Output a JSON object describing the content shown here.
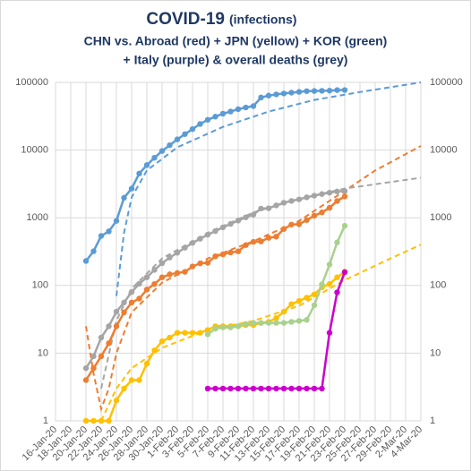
{
  "chart_data": {
    "type": "line",
    "title": "COVID-19",
    "title_note": "(infections)",
    "subtitle": [
      "CHN vs. Abroad (red) + JPN (yellow) + KOR (green)",
      "+ Italy (purple) & overall deaths (grey)"
    ],
    "log_y": true,
    "grid": true,
    "xlim": [
      "2020-01-16",
      "2020-03-04"
    ],
    "xticks": [
      {
        "value": "2020-01-16",
        "label": "16-Jan-20"
      },
      {
        "value": "2020-01-18",
        "label": "18-Jan-20"
      },
      {
        "value": "2020-01-20",
        "label": "20-Jan-20"
      },
      {
        "value": "2020-01-22",
        "label": "22-Jan-20"
      },
      {
        "value": "2020-01-24",
        "label": "24-Jan-20"
      },
      {
        "value": "2020-01-26",
        "label": "26-Jan-20"
      },
      {
        "value": "2020-01-28",
        "label": "28-Jan-20"
      },
      {
        "value": "2020-01-30",
        "label": "30-Jan-20"
      },
      {
        "value": "2020-02-01",
        "label": "1-Feb-20"
      },
      {
        "value": "2020-02-03",
        "label": "3-Feb-20"
      },
      {
        "value": "2020-02-05",
        "label": "5-Feb-20"
      },
      {
        "value": "2020-02-07",
        "label": "7-Feb-20"
      },
      {
        "value": "2020-02-09",
        "label": "9-Feb-20"
      },
      {
        "value": "2020-02-11",
        "label": "11-Feb-20"
      },
      {
        "value": "2020-02-13",
        "label": "13-Feb-20"
      },
      {
        "value": "2020-02-15",
        "label": "15-Feb-20"
      },
      {
        "value": "2020-02-17",
        "label": "17-Feb-20"
      },
      {
        "value": "2020-02-19",
        "label": "19-Feb-20"
      },
      {
        "value": "2020-02-21",
        "label": "21-Feb-20"
      },
      {
        "value": "2020-02-23",
        "label": "23-Feb-20"
      },
      {
        "value": "2020-02-25",
        "label": "25-Feb-20"
      },
      {
        "value": "2020-02-27",
        "label": "27-Feb-20"
      },
      {
        "value": "2020-02-29",
        "label": "29-Feb-20"
      },
      {
        "value": "2020-03-02",
        "label": "2-Mar-20"
      },
      {
        "value": "2020-03-04",
        "label": "4-Mar-20"
      }
    ],
    "ylim": [
      1,
      100000
    ],
    "yticks": [
      1,
      10,
      100,
      1000,
      10000,
      100000
    ],
    "y2lim": [
      1,
      100000
    ],
    "y2ticks": [
      1,
      10,
      100,
      1000,
      10000,
      100000
    ],
    "x": [
      "2020-01-20",
      "2020-01-21",
      "2020-01-22",
      "2020-01-23",
      "2020-01-24",
      "2020-01-25",
      "2020-01-26",
      "2020-01-27",
      "2020-01-28",
      "2020-01-29",
      "2020-01-30",
      "2020-01-31",
      "2020-02-01",
      "2020-02-02",
      "2020-02-03",
      "2020-02-04",
      "2020-02-05",
      "2020-02-06",
      "2020-02-07",
      "2020-02-08",
      "2020-02-09",
      "2020-02-10",
      "2020-02-11",
      "2020-02-12",
      "2020-02-13",
      "2020-02-14",
      "2020-02-15",
      "2020-02-16",
      "2020-02-17",
      "2020-02-18",
      "2020-02-19",
      "2020-02-20",
      "2020-02-21",
      "2020-02-22",
      "2020-02-23"
    ],
    "series": [
      {
        "color": "#5b9bd5",
        "values": [
          230,
          320,
          540,
          630,
          900,
          1975,
          2700,
          4500,
          6000,
          7700,
          9700,
          11800,
          14400,
          17200,
          20400,
          24300,
          28000,
          31200,
          34500,
          37100,
          40200,
          42600,
          44600,
          59800,
          63800,
          66500,
          68500,
          70500,
          72400,
          74200,
          74600,
          75100,
          75500,
          76900,
          77100
        ]
      },
      {
        "color": "#a5a5a5",
        "values": [
          6,
          9,
          17,
          25,
          41,
          56,
          80,
          106,
          132,
          170,
          213,
          259,
          304,
          361,
          425,
          490,
          563,
          636,
          722,
          811,
          908,
          1016,
          1113,
          1368,
          1381,
          1524,
          1666,
          1772,
          1870,
          2006,
          2121,
          2239,
          2348,
          2445,
          2480
        ]
      },
      {
        "color": "#ed7d31",
        "values": [
          4,
          6,
          9,
          14,
          25,
          40,
          56,
          64,
          87,
          105,
          132,
          146,
          153,
          159,
          191,
          212,
          216,
          270,
          288,
          307,
          319,
          395,
          441,
          447,
          505,
          526,
          683,
          794,
          804,
          924,
          1073,
          1200,
          1402,
          1769,
          2069
        ]
      },
      {
        "color": "#ffc000",
        "values": [
          1,
          1,
          1,
          1,
          2,
          3,
          4,
          4,
          7,
          11,
          15,
          17,
          20,
          20,
          20,
          20,
          22,
          25,
          25,
          25,
          25,
          26,
          26,
          28,
          29,
          33,
          41,
          53,
          59,
          66,
          74,
          94,
          105,
          132,
          160
        ]
      },
      {
        "color": "#a9d18e",
        "values": [
          null,
          null,
          null,
          null,
          null,
          null,
          null,
          null,
          null,
          null,
          null,
          null,
          null,
          null,
          null,
          null,
          19,
          23,
          24,
          24,
          25,
          27,
          28,
          28,
          28,
          28,
          28,
          29,
          30,
          31,
          51,
          104,
          204,
          433,
          763
        ]
      },
      {
        "color": "#cc00cc",
        "values": [
          null,
          null,
          null,
          null,
          null,
          null,
          null,
          null,
          null,
          null,
          null,
          null,
          null,
          null,
          null,
          null,
          3,
          3,
          3,
          3,
          3,
          3,
          3,
          3,
          3,
          3,
          3,
          3,
          3,
          3,
          3,
          3,
          20,
          79,
          157
        ]
      }
    ],
    "trendlines": [
      {
        "color": "#5b9bd5",
        "x": [
          "2020-01-24",
          "2020-01-25",
          "2020-01-26",
          "2020-01-28",
          "2020-02-01",
          "2020-02-07",
          "2020-02-13",
          "2020-02-19",
          "2020-02-25",
          "2020-03-04"
        ],
        "values": [
          70,
          600,
          2000,
          5000,
          11000,
          22000,
          37000,
          55000,
          72000,
          100000
        ]
      },
      {
        "color": "#ed7d31",
        "x": [
          "2020-01-20",
          "2020-01-21",
          "2020-01-22",
          "2020-01-23",
          "2020-01-24",
          "2020-01-26",
          "2020-01-30",
          "2020-02-05",
          "2020-02-11",
          "2020-02-17",
          "2020-02-23",
          "2020-02-27",
          "2020-03-04"
        ],
        "values": [
          25,
          5,
          1.5,
          3,
          10,
          40,
          110,
          250,
          450,
          900,
          2500,
          5000,
          11500
        ]
      },
      {
        "color": "#a5a5a5",
        "x": [
          "2020-01-22",
          "2020-01-24",
          "2020-01-26",
          "2020-01-30",
          "2020-02-05",
          "2020-02-11",
          "2020-02-17",
          "2020-02-23",
          "2020-03-04"
        ],
        "values": [
          3,
          30,
          90,
          250,
          600,
          1200,
          1900,
          2700,
          3900
        ]
      },
      {
        "color": "#ffc000",
        "x": [
          "2020-01-22",
          "2020-01-24",
          "2020-01-26",
          "2020-01-30",
          "2020-02-05",
          "2020-02-11",
          "2020-02-17",
          "2020-02-23",
          "2020-02-29",
          "2020-03-04"
        ],
        "values": [
          1,
          3,
          6,
          12,
          22,
          30,
          50,
          120,
          250,
          400
        ]
      }
    ]
  }
}
